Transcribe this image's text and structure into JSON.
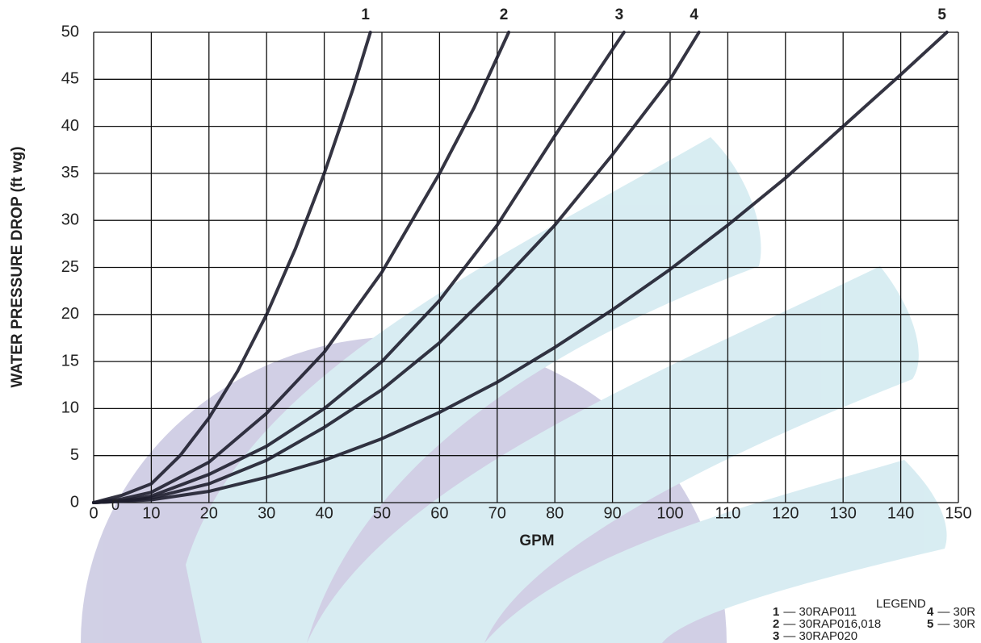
{
  "chart_data": {
    "type": "line",
    "x_label": "GPM",
    "y_label": "WATER PRESSURE DROP (ft wg)",
    "xlim": [
      0,
      150
    ],
    "ylim": [
      0,
      50
    ],
    "xticks": [
      0,
      10,
      20,
      30,
      40,
      50,
      60,
      70,
      80,
      90,
      100,
      110,
      120,
      130,
      140,
      150
    ],
    "yticks": [
      0,
      5,
      10,
      15,
      20,
      25,
      30,
      35,
      40,
      45,
      50
    ],
    "grid": true,
    "annotation": "0",
    "series": [
      {
        "name": "1",
        "color": "#1e1e2e",
        "x": [
          0,
          5,
          10,
          15,
          20,
          25,
          30,
          35,
          40,
          45,
          48
        ],
        "values": [
          0,
          0.8,
          2,
          5,
          9,
          14,
          20,
          27,
          35,
          44,
          50
        ]
      },
      {
        "name": "2",
        "color": "#1e1e2e",
        "x": [
          0,
          5,
          10,
          20,
          30,
          40,
          50,
          60,
          66,
          72
        ],
        "values": [
          0,
          0.4,
          1.1,
          4.3,
          9.5,
          16,
          24.5,
          35,
          42,
          50
        ]
      },
      {
        "name": "3",
        "color": "#1e1e2e",
        "x": [
          0,
          5,
          10,
          20,
          30,
          40,
          50,
          60,
          70,
          80,
          92
        ],
        "values": [
          0,
          0.2,
          0.7,
          3,
          6,
          10,
          15,
          21.5,
          29.5,
          39,
          50
        ]
      },
      {
        "name": "4",
        "color": "#1e1e2e",
        "x": [
          0,
          5,
          10,
          20,
          30,
          40,
          50,
          60,
          70,
          80,
          90,
          100,
          105
        ],
        "values": [
          0,
          0.15,
          0.5,
          2,
          4.5,
          8,
          12,
          17,
          23,
          29.5,
          37,
          45,
          50
        ]
      },
      {
        "name": "5",
        "color": "#1e1e2e",
        "x": [
          0,
          10,
          20,
          30,
          40,
          50,
          60,
          70,
          80,
          90,
          100,
          110,
          120,
          130,
          140,
          148
        ],
        "values": [
          0,
          0.3,
          1.2,
          2.7,
          4.5,
          6.8,
          9.6,
          12.8,
          16.5,
          20.5,
          24.8,
          29.5,
          34.5,
          40,
          45.5,
          50
        ]
      }
    ],
    "legend": {
      "title": "LEGEND",
      "entries": [
        {
          "key": "1",
          "label": "— 30RAP011"
        },
        {
          "key": "2",
          "label": "— 30RAP016,018"
        },
        {
          "key": "3",
          "label": "— 30RAP020"
        },
        {
          "key": "4",
          "label": "— 30R"
        },
        {
          "key": "5",
          "label": "— 30R"
        }
      ]
    }
  }
}
